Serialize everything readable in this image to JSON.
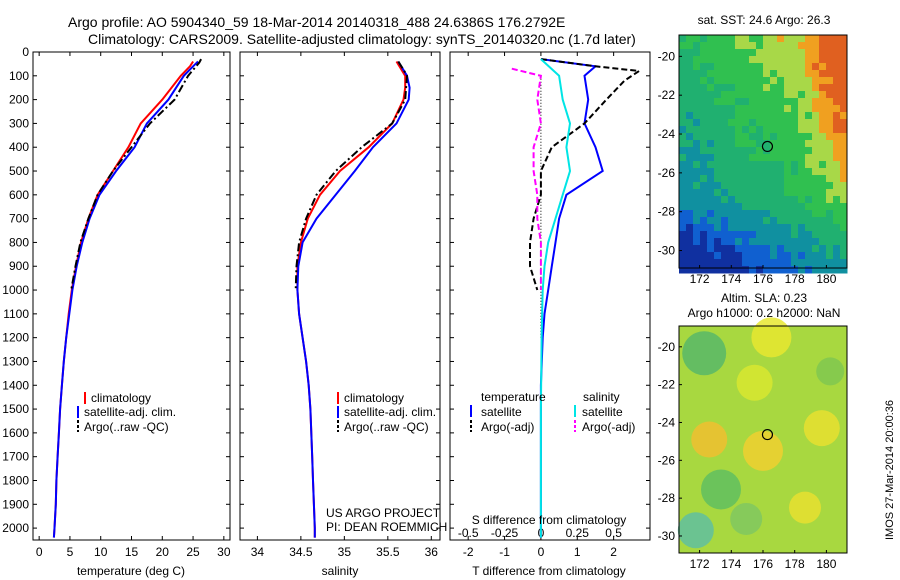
{
  "header": {
    "line1": "Argo profile: AO 5904340_59 18-Mar-2014 20140318_488 24.6386S 176.2792E",
    "line2": "Climatology: CARS2009. Satellite-adjusted climatology: synTS_20140320.nc (1.7d later)"
  },
  "side_stamp": "IMOS 27-Mar-2014 20:00:36",
  "project": {
    "line1": "US ARGO PROJECT",
    "line2": "PI: DEAN ROEMMICH"
  },
  "colors": {
    "red": "#ff0000",
    "blue": "#0000ff",
    "black": "#000000",
    "cyan": "#00e5e5",
    "magenta": "#ff00ff"
  },
  "chart_data": [
    {
      "type": "line",
      "xlabel": "temperature (deg C)",
      "xlim": [
        -1,
        31
      ],
      "xticks": [
        0,
        5,
        10,
        15,
        20,
        25,
        30
      ],
      "ylim": [
        2050,
        0
      ],
      "yticks": [
        0,
        100,
        200,
        300,
        400,
        500,
        600,
        700,
        800,
        900,
        1000,
        1100,
        1200,
        1300,
        1400,
        1500,
        1600,
        1700,
        1800,
        1900,
        2000
      ],
      "legend": [
        "climatology",
        "satellite-adj. clim.",
        "Argo(..raw -QC)"
      ],
      "series": [
        {
          "name": "climatology",
          "color": "red",
          "dash": "",
          "points": [
            [
              25.0,
              40
            ],
            [
              24.5,
              60
            ],
            [
              23,
              100
            ],
            [
              20,
              200
            ],
            [
              16.5,
              300
            ],
            [
              14.5,
              400
            ],
            [
              12,
              500
            ],
            [
              9.5,
              600
            ],
            [
              8,
              700
            ],
            [
              6.8,
              800
            ],
            [
              6,
              900
            ],
            [
              5.3,
              1000
            ],
            [
              4.8,
              1100
            ],
            [
              4.4,
              1200
            ],
            [
              4,
              1300
            ],
            [
              3.7,
              1400
            ],
            [
              3.4,
              1500
            ],
            [
              3.2,
              1600
            ],
            [
              3,
              1700
            ],
            [
              2.8,
              1800
            ],
            [
              2.7,
              1900
            ],
            [
              2.5,
              2000
            ],
            [
              2.4,
              2040
            ]
          ]
        },
        {
          "name": "satellite-adj. clim.",
          "color": "blue",
          "dash": "",
          "points": [
            [
              25.8,
              40
            ],
            [
              25,
              60
            ],
            [
              23.5,
              100
            ],
            [
              21,
              200
            ],
            [
              17.5,
              300
            ],
            [
              15.5,
              400
            ],
            [
              12.5,
              500
            ],
            [
              9.8,
              600
            ],
            [
              8.2,
              700
            ],
            [
              7,
              800
            ],
            [
              6.1,
              900
            ],
            [
              5.4,
              1000
            ],
            [
              4.9,
              1100
            ],
            [
              4.4,
              1200
            ],
            [
              4,
              1300
            ],
            [
              3.7,
              1400
            ],
            [
              3.4,
              1500
            ],
            [
              3.2,
              1600
            ],
            [
              3,
              1700
            ],
            [
              2.8,
              1800
            ],
            [
              2.7,
              1900
            ],
            [
              2.5,
              2000
            ],
            [
              2.4,
              2040
            ]
          ]
        },
        {
          "name": "Argo(..raw -QC)",
          "color": "black",
          "dash": "8,3,2,3",
          "points": [
            [
              26.3,
              30
            ],
            [
              26,
              45
            ],
            [
              25.5,
              60
            ],
            [
              24.2,
              100
            ],
            [
              22,
              200
            ],
            [
              18,
              300
            ],
            [
              15,
              400
            ],
            [
              12,
              500
            ],
            [
              9.5,
              600
            ],
            [
              8,
              700
            ],
            [
              6.7,
              800
            ],
            [
              5.9,
              900
            ],
            [
              5.2,
              1000
            ]
          ]
        }
      ]
    },
    {
      "type": "line",
      "xlabel": "salinity",
      "xlim": [
        33.8,
        36.1
      ],
      "xticks": [
        34,
        34.5,
        35,
        35.5,
        36
      ],
      "ylim": [
        2050,
        0
      ],
      "legend": [
        "climatology",
        "satellite-adj. clim.",
        "Argo(..raw -QC)"
      ],
      "series": [
        {
          "name": "climatology",
          "color": "red",
          "dash": "",
          "points": [
            [
              35.6,
              40
            ],
            [
              35.7,
              100
            ],
            [
              35.7,
              150
            ],
            [
              35.68,
              200
            ],
            [
              35.55,
              300
            ],
            [
              35.28,
              400
            ],
            [
              34.95,
              500
            ],
            [
              34.72,
              600
            ],
            [
              34.58,
              700
            ],
            [
              34.5,
              800
            ],
            [
              34.46,
              900
            ],
            [
              34.46,
              1000
            ],
            [
              34.48,
              1100
            ],
            [
              34.52,
              1200
            ],
            [
              34.56,
              1300
            ],
            [
              34.59,
              1400
            ],
            [
              34.61,
              1500
            ],
            [
              34.62,
              1600
            ],
            [
              34.63,
              1700
            ],
            [
              34.64,
              1800
            ],
            [
              34.65,
              1900
            ],
            [
              34.66,
              2000
            ],
            [
              34.66,
              2040
            ]
          ]
        },
        {
          "name": "satellite-adj. clim.",
          "color": "blue",
          "dash": "",
          "points": [
            [
              35.62,
              40
            ],
            [
              35.72,
              100
            ],
            [
              35.75,
              150
            ],
            [
              35.74,
              200
            ],
            [
              35.6,
              300
            ],
            [
              35.33,
              400
            ],
            [
              35.12,
              500
            ],
            [
              34.9,
              600
            ],
            [
              34.68,
              700
            ],
            [
              34.52,
              800
            ],
            [
              34.47,
              900
            ],
            [
              34.46,
              1000
            ],
            [
              34.48,
              1100
            ],
            [
              34.52,
              1200
            ],
            [
              34.56,
              1300
            ],
            [
              34.59,
              1400
            ],
            [
              34.61,
              1500
            ],
            [
              34.62,
              1600
            ],
            [
              34.63,
              1700
            ],
            [
              34.64,
              1800
            ],
            [
              34.65,
              1900
            ],
            [
              34.66,
              2000
            ],
            [
              34.66,
              2040
            ]
          ]
        },
        {
          "name": "Argo(..raw -QC)",
          "color": "black",
          "dash": "8,3,2,3",
          "points": [
            [
              35.62,
              40
            ],
            [
              35.69,
              80
            ],
            [
              35.72,
              100
            ],
            [
              35.7,
              200
            ],
            [
              35.55,
              300
            ],
            [
              35.2,
              400
            ],
            [
              34.9,
              500
            ],
            [
              34.68,
              600
            ],
            [
              34.56,
              700
            ],
            [
              34.48,
              800
            ],
            [
              34.45,
              900
            ],
            [
              34.44,
              1000
            ]
          ]
        }
      ]
    },
    {
      "type": "line",
      "xlabel": "T difference from climatology",
      "x2label": "S difference from climatology",
      "xlim": [
        -2.5,
        3.0
      ],
      "xticks": [
        -2,
        -1,
        0,
        1,
        2
      ],
      "x2ticks": [
        [
          "-0.5",
          -2
        ],
        [
          "-0.25",
          -1
        ],
        [
          "0",
          0
        ],
        [
          "0.25",
          1
        ],
        [
          "0.5",
          2
        ]
      ],
      "ylim": [
        2050,
        0
      ],
      "legend_title_t": "temperature",
      "legend_title_s": "salinity",
      "legend": [
        "satellite",
        "Argo(-adj)",
        "satellite",
        "Argo(-adj)"
      ],
      "series": [
        {
          "name": "temperature satellite",
          "color": "blue",
          "dash": "",
          "points": [
            [
              0,
              30
            ],
            [
              1.5,
              60
            ],
            [
              1.2,
              100
            ],
            [
              1.3,
              200
            ],
            [
              1.2,
              300
            ],
            [
              1.5,
              400
            ],
            [
              1.7,
              500
            ],
            [
              0.7,
              600
            ],
            [
              0.5,
              700
            ],
            [
              0.4,
              800
            ],
            [
              0.3,
              900
            ],
            [
              0.2,
              1000
            ],
            [
              0.1,
              1100
            ],
            [
              0.05,
              1200
            ],
            [
              0,
              1400
            ],
            [
              0,
              2040
            ]
          ]
        },
        {
          "name": "temperature Argo(-adj)",
          "color": "black",
          "dash": "6,3",
          "points": [
            [
              0,
              30
            ],
            [
              1.5,
              60
            ],
            [
              2.7,
              80
            ],
            [
              2.3,
              120
            ],
            [
              1.8,
              200
            ],
            [
              1.2,
              300
            ],
            [
              0.3,
              400
            ],
            [
              0,
              500
            ],
            [
              0,
              600
            ],
            [
              -0.2,
              700
            ],
            [
              -0.3,
              800
            ],
            [
              -0.3,
              900
            ],
            [
              -0.1,
              1000
            ]
          ]
        },
        {
          "name": "salinity satellite",
          "color": "cyan",
          "dash": "",
          "points": [
            [
              0,
              30
            ],
            [
              0.5,
              100
            ],
            [
              0.6,
              200
            ],
            [
              0.8,
              300
            ],
            [
              0.7,
              400
            ],
            [
              0.8,
              500
            ],
            [
              0.6,
              600
            ],
            [
              0.4,
              700
            ],
            [
              0.2,
              800
            ],
            [
              0.1,
              900
            ],
            [
              0.05,
              1000
            ],
            [
              0.02,
              1200
            ],
            [
              0,
              1500
            ],
            [
              0,
              2040
            ]
          ]
        },
        {
          "name": "salinity Argo(-adj)",
          "color": "magenta",
          "dash": "6,3",
          "points": [
            [
              -0.8,
              70
            ],
            [
              0,
              100
            ],
            [
              -0.1,
              200
            ],
            [
              0,
              300
            ],
            [
              -0.2,
              400
            ],
            [
              -0.2,
              500
            ],
            [
              -0.1,
              600
            ],
            [
              -0.1,
              700
            ],
            [
              0,
              800
            ],
            [
              0,
              1000
            ]
          ]
        }
      ],
      "dotted_x": 0
    },
    {
      "type": "heatmap",
      "title": "sat. SST: 24.6 Argo: 26.3",
      "xticks": [
        172,
        174,
        176,
        178,
        180
      ],
      "yticks": [
        -20,
        -22,
        -24,
        -26,
        -28,
        -30
      ],
      "xlim": [
        170.7,
        181.3
      ],
      "ylim": [
        -30.9,
        -18.9
      ],
      "marker": [
        176.28,
        -24.64
      ]
    },
    {
      "type": "heatmap",
      "title": "Altim. SLA: 0.23",
      "subtitle": "Argo h1000: 0.2 h2000: NaN",
      "xticks": [
        172,
        174,
        176,
        178,
        180
      ],
      "yticks": [
        -20,
        -22,
        -24,
        -26,
        -28,
        -30
      ],
      "xlim": [
        170.7,
        181.3
      ],
      "ylim": [
        -30.9,
        -18.9
      ],
      "marker": [
        176.28,
        -24.64
      ]
    }
  ]
}
